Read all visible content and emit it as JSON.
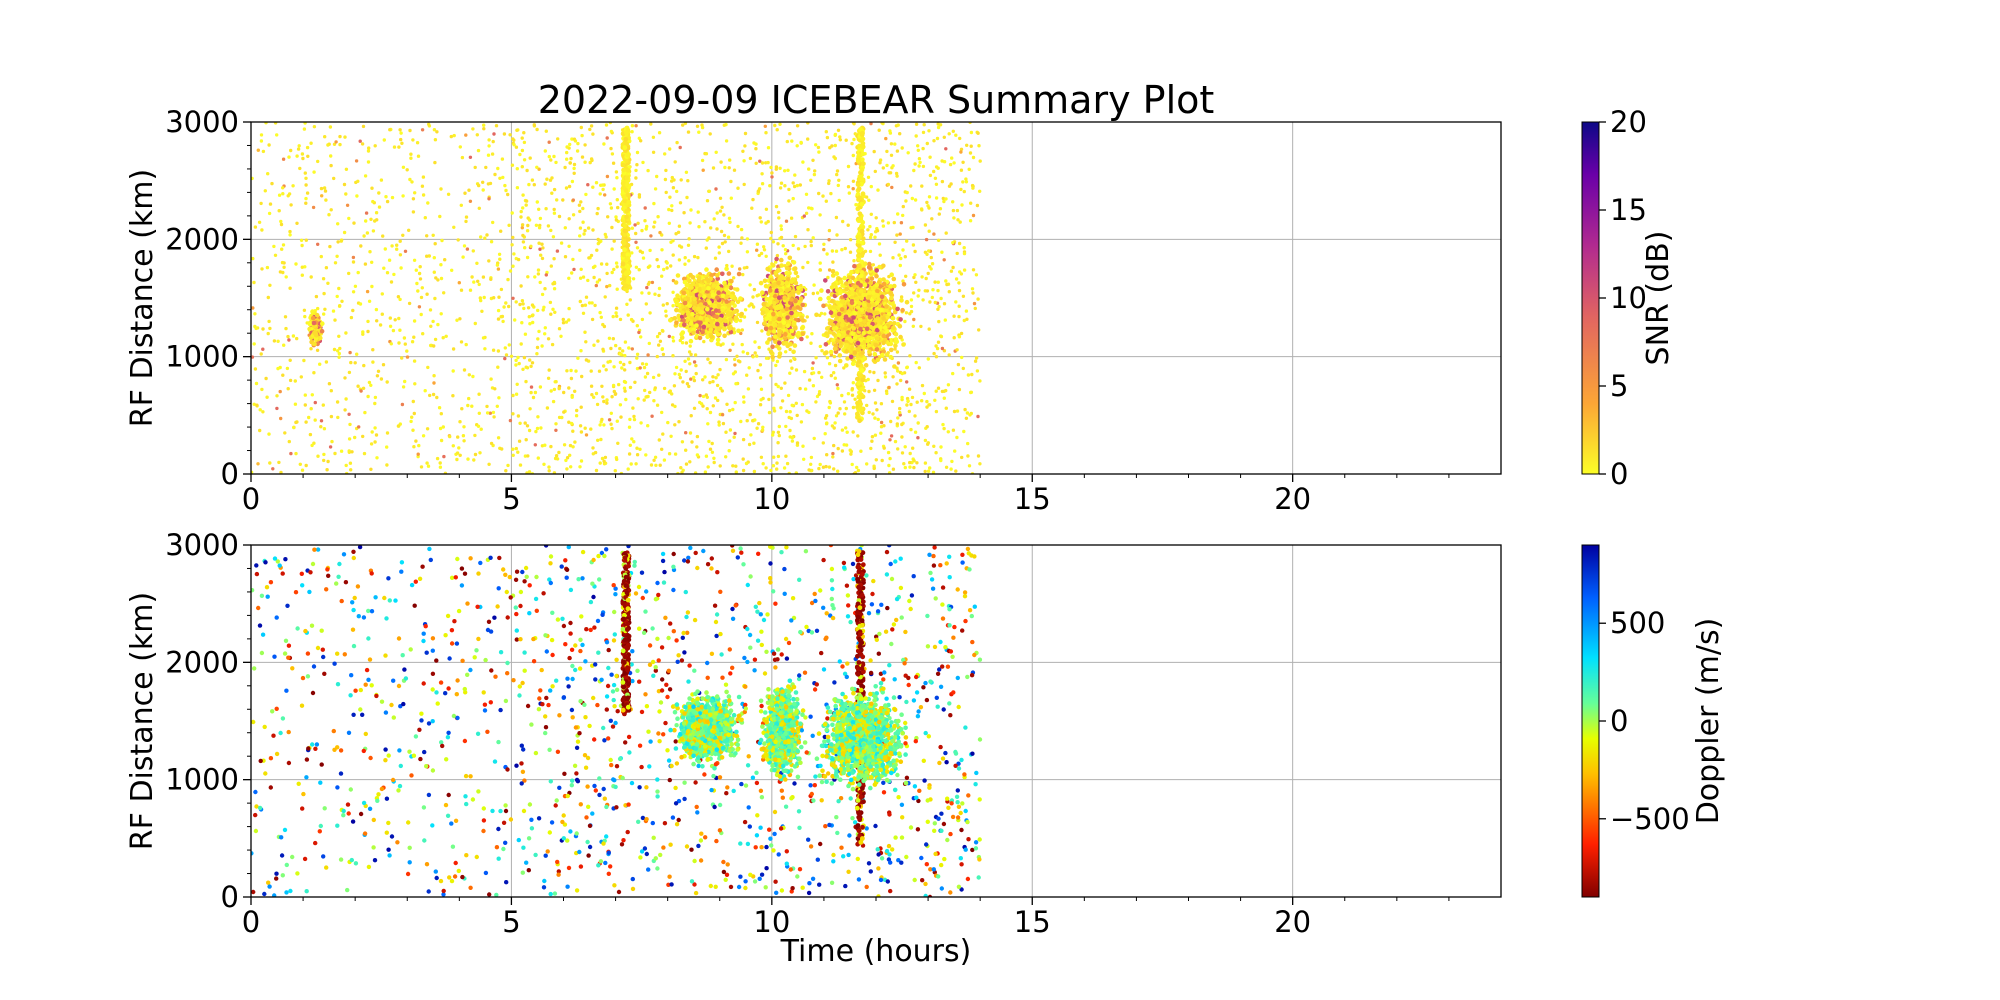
{
  "title": "2022-09-09 ICEBEAR Summary Plot",
  "x_label": "Time (hours)",
  "chart_data": [
    {
      "type": "scatter",
      "panel": "snr",
      "ylabel": "RF Distance (km)",
      "xlim": [
        0,
        24
      ],
      "ylim": [
        0,
        3000
      ],
      "x_ticks": [
        "0",
        "5",
        "10",
        "15",
        "20"
      ],
      "y_ticks": [
        "0",
        "1000",
        "2000",
        "3000"
      ],
      "grid": true,
      "colorbar": {
        "label": "SNR (dB)",
        "range": [
          0,
          20
        ],
        "ticks": [
          "0",
          "5",
          "10",
          "15",
          "20"
        ],
        "colormap": [
          "#fcfe27",
          "#fca636",
          "#e16462",
          "#b12a90",
          "#6a00a8",
          "#0d0887"
        ]
      },
      "data_extent_hours": [
        0,
        14
      ],
      "features": [
        {
          "name": "vertical streak",
          "x": 7.2,
          "y_range": [
            1550,
            2950
          ]
        },
        {
          "name": "vertical streak",
          "x": 11.7,
          "y_range": [
            450,
            2950
          ]
        },
        {
          "name": "echo cluster",
          "x_range": [
            8.0,
            9.5
          ],
          "y_range": [
            1150,
            1850
          ]
        },
        {
          "name": "echo cluster",
          "x_range": [
            9.7,
            10.7
          ],
          "y_range": [
            1050,
            2000
          ]
        },
        {
          "name": "echo cluster",
          "x_range": [
            10.8,
            12.7
          ],
          "y_range": [
            950,
            1950
          ]
        },
        {
          "name": "small cluster",
          "x_range": [
            1.1,
            1.4
          ],
          "y_range": [
            1100,
            1450
          ]
        }
      ]
    },
    {
      "type": "scatter",
      "panel": "doppler",
      "ylabel": "RF Distance (km)",
      "xlabel": "Time (hours)",
      "xlim": [
        0,
        24
      ],
      "ylim": [
        0,
        3000
      ],
      "x_ticks": [
        "0",
        "5",
        "10",
        "15",
        "20"
      ],
      "y_ticks": [
        "0",
        "1000",
        "2000",
        "3000"
      ],
      "grid": true,
      "colorbar": {
        "label": "Doppler (m/s)",
        "range": [
          -900,
          900
        ],
        "ticks": [
          "−500",
          "0",
          "500"
        ],
        "tick_values": [
          -500,
          0,
          500
        ],
        "colormap": [
          "#800000",
          "#ff2000",
          "#ffc000",
          "#e6ff00",
          "#66ff99",
          "#00e0ff",
          "#0060ff",
          "#0000a0"
        ]
      },
      "data_extent_hours": [
        0,
        14
      ],
      "features": [
        {
          "name": "vertical streak",
          "x": 7.2,
          "y_range": [
            1550,
            2950
          ]
        },
        {
          "name": "vertical streak",
          "x": 11.7,
          "y_range": [
            450,
            2950
          ]
        },
        {
          "name": "echo cluster",
          "x_range": [
            8.0,
            9.5
          ],
          "y_range": [
            1150,
            1850
          ]
        },
        {
          "name": "echo cluster",
          "x_range": [
            9.7,
            10.7
          ],
          "y_range": [
            1050,
            2000
          ]
        },
        {
          "name": "echo cluster",
          "x_range": [
            10.8,
            12.7
          ],
          "y_range": [
            950,
            1950
          ]
        }
      ]
    }
  ]
}
